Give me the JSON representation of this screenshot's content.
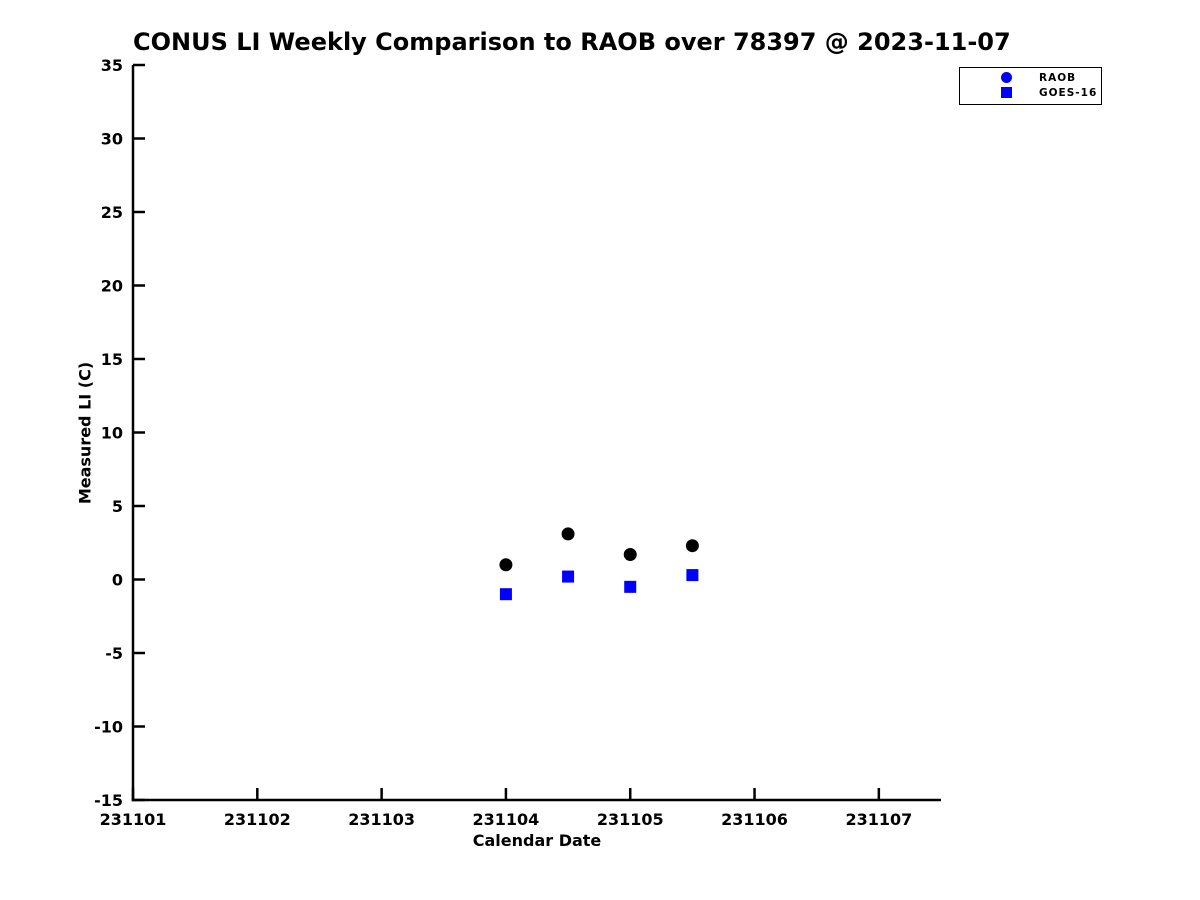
{
  "chart_data": {
    "type": "scatter",
    "title": "CONUS LI Weekly Comparison to RAOB over 78397 @ 2023-11-07",
    "xlabel": "Calendar Date",
    "ylabel": "Measured LI (C)",
    "xlim": [
      231101,
      231107.5
    ],
    "ylim": [
      -15,
      35
    ],
    "grid": false,
    "x_ticks": {
      "values": [
        231101,
        231102,
        231103,
        231104,
        231105,
        231106,
        231107
      ],
      "labels": [
        "231101",
        "231102",
        "231103",
        "231104",
        "231105",
        "231106",
        "231107"
      ]
    },
    "y_ticks": {
      "values": [
        35,
        30,
        25,
        20,
        15,
        10,
        5,
        0,
        -5,
        -10,
        -15
      ],
      "labels": [
        "35",
        "30",
        "25",
        "20",
        "15",
        "10",
        "5",
        "0",
        "-5",
        "-10",
        "-15"
      ]
    },
    "legend": {
      "position": "top-right",
      "border_color": "#000000",
      "background": "#ffffff"
    },
    "series": [
      {
        "name": "RAOB",
        "marker": "circle",
        "color": "#000000",
        "legend_color": "#0000ff",
        "x": [
          231104,
          231104.5,
          231105,
          231105.5
        ],
        "y": [
          1.0,
          3.1,
          1.7,
          2.3
        ]
      },
      {
        "name": "GOES-16",
        "marker": "square",
        "color": "#0000ff",
        "legend_color": "#0000ff",
        "x": [
          231104,
          231104.5,
          231105,
          231105.5
        ],
        "y": [
          -1.0,
          0.2,
          -0.5,
          0.3
        ]
      }
    ],
    "colors": {
      "axis": "#000000",
      "tick_label": "#000000",
      "background": "#ffffff",
      "accent_blue": "#0000ff"
    }
  }
}
